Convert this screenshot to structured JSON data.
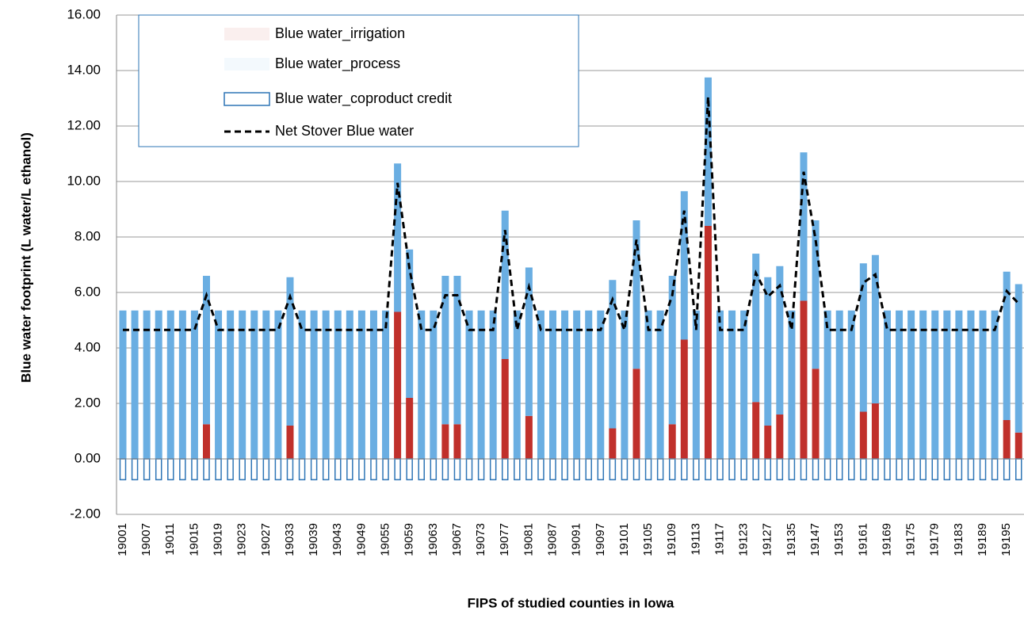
{
  "chart_data": {
    "type": "bar",
    "stacked": true,
    "y_label": "Blue water footprint (L water/L ethanol)",
    "x_label": "FIPS of studied counties in Iowa",
    "categories": [
      "19001",
      null,
      "19007",
      null,
      "19011",
      null,
      "19015",
      null,
      "19019",
      null,
      "19023",
      null,
      "19027",
      null,
      "19033",
      null,
      "19039",
      null,
      "19043",
      null,
      "19049",
      null,
      "19055",
      null,
      "19059",
      null,
      "19063",
      null,
      "19067",
      null,
      "19073",
      null,
      "19077",
      null,
      "19081",
      null,
      "19087",
      null,
      "19091",
      null,
      "19097",
      null,
      "19101",
      null,
      "19105",
      null,
      "19109",
      null,
      "19113",
      null,
      "19117",
      null,
      "19123",
      null,
      "19127",
      null,
      "19135",
      null,
      "19147",
      null,
      "19153",
      null,
      "19161",
      null,
      "19169",
      null,
      "19175",
      null,
      "19179",
      null,
      "19183",
      null,
      "19189",
      null,
      "19195",
      null
    ],
    "series": [
      {
        "name": "Blue water_irrigation",
        "color": "#c0302b",
        "kind": "bar",
        "values": [
          0,
          0,
          0,
          0,
          0,
          0,
          0,
          1.25,
          0,
          0,
          0,
          0,
          0,
          0,
          1.2,
          0,
          0,
          0,
          0,
          0,
          0,
          0,
          0,
          5.3,
          2.2,
          0,
          0,
          1.25,
          1.25,
          0,
          0,
          0,
          3.6,
          0,
          1.55,
          0,
          0,
          0,
          0,
          0,
          0,
          1.1,
          0,
          3.25,
          0,
          0,
          1.25,
          4.3,
          0,
          8.4,
          0,
          0,
          0,
          2.05,
          1.2,
          1.6,
          0,
          5.7,
          3.25,
          0,
          0,
          0,
          1.7,
          2.0,
          0,
          0,
          0,
          0,
          0,
          0,
          0,
          0,
          0,
          0,
          1.4,
          0.95
        ]
      },
      {
        "name": "Blue water_process",
        "color": "#6aaee2",
        "kind": "bar",
        "values": [
          5.35,
          5.35,
          5.35,
          5.35,
          5.35,
          5.35,
          5.35,
          5.35,
          5.35,
          5.35,
          5.35,
          5.35,
          5.35,
          5.35,
          5.35,
          5.35,
          5.35,
          5.35,
          5.35,
          5.35,
          5.35,
          5.35,
          5.35,
          5.35,
          5.35,
          5.35,
          5.35,
          5.35,
          5.35,
          5.35,
          5.35,
          5.35,
          5.35,
          5.35,
          5.35,
          5.35,
          5.35,
          5.35,
          5.35,
          5.35,
          5.35,
          5.35,
          5.35,
          5.35,
          5.35,
          5.35,
          5.35,
          5.35,
          5.35,
          5.35,
          5.35,
          5.35,
          5.35,
          5.35,
          5.35,
          5.35,
          5.35,
          5.35,
          5.35,
          5.35,
          5.35,
          5.35,
          5.35,
          5.35,
          5.35,
          5.35,
          5.35,
          5.35,
          5.35,
          5.35,
          5.35,
          5.35,
          5.35,
          5.35,
          5.35,
          5.35
        ]
      },
      {
        "name": "Blue water_coproduct credit",
        "color": "#2e75b6",
        "kind": "outline-bar",
        "values": [
          -0.75,
          -0.75,
          -0.75,
          -0.75,
          -0.75,
          -0.75,
          -0.75,
          -0.75,
          -0.75,
          -0.75,
          -0.75,
          -0.75,
          -0.75,
          -0.75,
          -0.75,
          -0.75,
          -0.75,
          -0.75,
          -0.75,
          -0.75,
          -0.75,
          -0.75,
          -0.75,
          -0.75,
          -0.75,
          -0.75,
          -0.75,
          -0.75,
          -0.75,
          -0.75,
          -0.75,
          -0.75,
          -0.75,
          -0.75,
          -0.75,
          -0.75,
          -0.75,
          -0.75,
          -0.75,
          -0.75,
          -0.75,
          -0.75,
          -0.75,
          -0.75,
          -0.75,
          -0.75,
          -0.75,
          -0.75,
          -0.75,
          -0.75,
          -0.75,
          -0.75,
          -0.75,
          -0.75,
          -0.75,
          -0.75,
          -0.75,
          -0.75,
          -0.75,
          -0.75,
          -0.75,
          -0.75,
          -0.75,
          -0.75,
          -0.75,
          -0.75,
          -0.75,
          -0.75,
          -0.75,
          -0.75,
          -0.75,
          -0.75,
          -0.75,
          -0.75,
          -0.75,
          -0.75
        ]
      },
      {
        "name": "Net Stover Blue water",
        "color": "#000000",
        "kind": "dashed-line",
        "values": [
          4.65,
          4.65,
          4.65,
          4.65,
          4.65,
          4.65,
          4.65,
          5.9,
          4.65,
          4.65,
          4.65,
          4.65,
          4.65,
          4.65,
          5.85,
          4.65,
          4.65,
          4.65,
          4.65,
          4.65,
          4.65,
          4.65,
          4.65,
          9.95,
          6.85,
          4.65,
          4.65,
          5.9,
          5.9,
          4.65,
          4.65,
          4.65,
          8.25,
          4.65,
          6.2,
          4.65,
          4.65,
          4.65,
          4.65,
          4.65,
          4.65,
          5.75,
          4.65,
          7.9,
          4.65,
          4.65,
          5.9,
          8.95,
          4.65,
          13.05,
          4.65,
          4.65,
          4.65,
          6.7,
          5.85,
          6.25,
          4.65,
          10.35,
          7.9,
          4.65,
          4.65,
          4.65,
          6.35,
          6.65,
          4.65,
          4.65,
          4.65,
          4.65,
          4.65,
          4.65,
          4.65,
          4.65,
          4.65,
          4.65,
          6.05,
          5.6
        ]
      }
    ],
    "ylim": [
      -2,
      16
    ],
    "yticks": [
      {
        "value": -2,
        "label": "-2.00"
      },
      {
        "value": 0,
        "label": "0.00"
      },
      {
        "value": 2,
        "label": "2.00"
      },
      {
        "value": 4,
        "label": "4.00"
      },
      {
        "value": 6,
        "label": "6.00"
      },
      {
        "value": 8,
        "label": "8.00"
      },
      {
        "value": 10,
        "label": "10.00"
      },
      {
        "value": 12,
        "label": "12.00"
      },
      {
        "value": 14,
        "label": "14.00"
      },
      {
        "value": 16,
        "label": "16.00"
      }
    ],
    "grid": true,
    "legend": "top-left"
  }
}
